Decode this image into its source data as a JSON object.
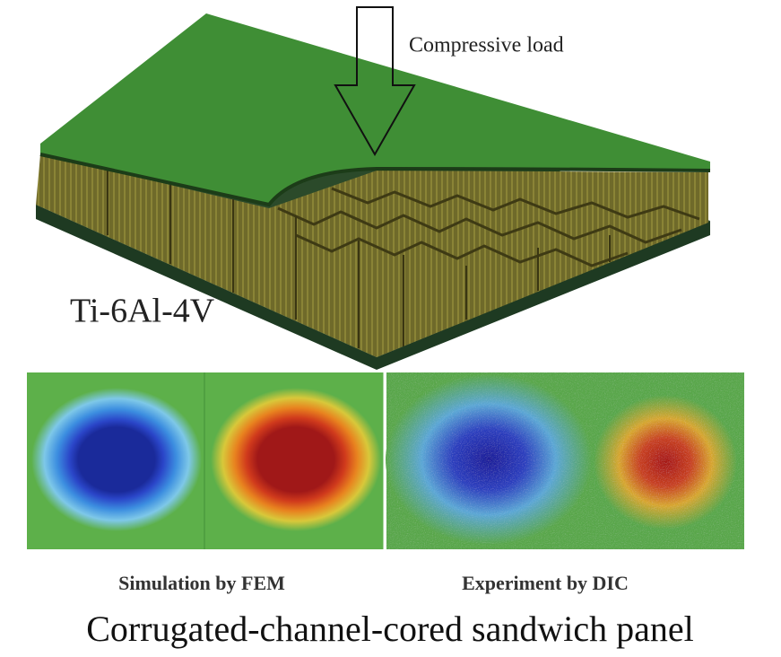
{
  "labels": {
    "load": "Compressive load",
    "material": "Ti-6Al-4V"
  },
  "panels": [
    {
      "caption": "Simulation by FEM"
    },
    {
      "caption": "Experiment by DIC"
    }
  ],
  "title": "Corrugated-channel-cored sandwich panel"
}
